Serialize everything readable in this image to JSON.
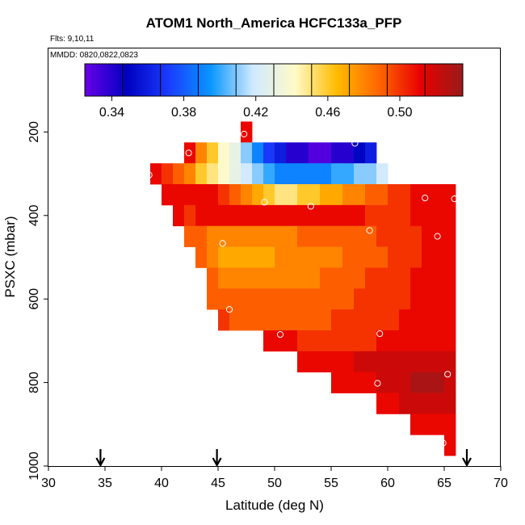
{
  "chart_data": {
    "type": "heatmap",
    "title": "ATOM1 North_America HCFC133a_PFP",
    "flights_label": "Flts: 9,10,11",
    "dates_label": "MMDD: 0820,0822,0823",
    "xlabel": "Latitude (deg N)",
    "ylabel": "PSXC (mbar)",
    "xlim": [
      30,
      70
    ],
    "ylim": [
      1000,
      0
    ],
    "xticks": [
      30,
      35,
      40,
      45,
      50,
      55,
      60,
      65,
      70
    ],
    "yticks": [
      200,
      400,
      600,
      800,
      1000
    ],
    "colorbar": {
      "range": [
        0.325,
        0.535
      ],
      "ticks": [
        0.34,
        0.38,
        0.42,
        0.46,
        0.5
      ],
      "tick_labels": [
        "0.34",
        "0.38",
        "0.42",
        "0.46",
        "0.50"
      ],
      "bins": 10,
      "colors": [
        "#6a00e8",
        "#0000c0",
        "#1a3cff",
        "#0a96ff",
        "#cfe9ff",
        "#fffbc8",
        "#ffbb00",
        "#ff6600",
        "#e80000",
        "#9a1a1a"
      ]
    },
    "grid": {
      "x_start": 34,
      "y_start": 150,
      "cell_deg": 1,
      "cell_mbar": 50,
      "rows": [
        {
          "p": 200,
          "from": 47,
          "values": [
            0.51
          ]
        },
        {
          "p": 250,
          "from": 42,
          "values": [
            0.51,
            0.48,
            0.46,
            0.44,
            0.43,
            0.41,
            0.39,
            0.37,
            0.36,
            0.34,
            0.34,
            0.33,
            0.33,
            0.34,
            0.34,
            0.35,
            0.36
          ]
        },
        {
          "p": 300,
          "from": 39,
          "values": [
            0.51,
            0.5,
            0.49,
            0.48,
            0.46,
            0.45,
            0.44,
            0.43,
            0.42,
            0.41,
            0.4,
            0.39,
            0.39,
            0.39,
            0.39,
            0.39,
            0.4,
            0.4,
            0.41,
            0.41,
            0.42
          ]
        },
        {
          "p": 350,
          "from": 40,
          "values": [
            0.51,
            0.51,
            0.51,
            0.51,
            0.51,
            0.5,
            0.49,
            0.48,
            0.47,
            0.46,
            0.45,
            0.45,
            0.46,
            0.46,
            0.47,
            0.47,
            0.48,
            0.48,
            0.49,
            0.49,
            0.5,
            0.5,
            0.51,
            0.51,
            0.51,
            0.51
          ]
        },
        {
          "p": 400,
          "from": 41,
          "values": [
            0.51,
            0.5,
            0.51,
            0.51,
            0.51,
            0.51,
            0.51,
            0.51,
            0.51,
            0.51,
            0.51,
            0.51,
            0.51,
            0.51,
            0.51,
            0.51,
            0.51,
            0.5,
            0.5,
            0.5,
            0.5,
            0.51,
            0.51,
            0.51,
            0.51
          ]
        },
        {
          "p": 450,
          "from": 42,
          "values": [
            0.49,
            0.49,
            0.48,
            0.48,
            0.48,
            0.48,
            0.48,
            0.48,
            0.48,
            0.48,
            0.49,
            0.49,
            0.49,
            0.49,
            0.49,
            0.49,
            0.49,
            0.5,
            0.5,
            0.5,
            0.5,
            0.51,
            0.51,
            0.51
          ]
        },
        {
          "p": 500,
          "from": 43,
          "values": [
            0.49,
            0.48,
            0.47,
            0.47,
            0.47,
            0.47,
            0.47,
            0.48,
            0.48,
            0.48,
            0.48,
            0.48,
            0.48,
            0.49,
            0.49,
            0.49,
            0.49,
            0.5,
            0.5,
            0.5,
            0.51,
            0.51,
            0.51
          ]
        },
        {
          "p": 550,
          "from": 44,
          "values": [
            0.49,
            0.48,
            0.48,
            0.48,
            0.48,
            0.48,
            0.48,
            0.48,
            0.48,
            0.48,
            0.49,
            0.49,
            0.49,
            0.49,
            0.5,
            0.5,
            0.5,
            0.5,
            0.51,
            0.51,
            0.51,
            0.51
          ]
        },
        {
          "p": 600,
          "from": 44,
          "values": [
            0.49,
            0.49,
            0.49,
            0.49,
            0.49,
            0.49,
            0.49,
            0.49,
            0.49,
            0.49,
            0.49,
            0.49,
            0.49,
            0.5,
            0.5,
            0.5,
            0.5,
            0.5,
            0.51,
            0.51,
            0.51,
            0.51
          ]
        },
        {
          "p": 650,
          "from": 45,
          "values": [
            0.5,
            0.49,
            0.49,
            0.49,
            0.49,
            0.49,
            0.49,
            0.49,
            0.49,
            0.49,
            0.5,
            0.5,
            0.5,
            0.5,
            0.5,
            0.5,
            0.51,
            0.51,
            0.51,
            0.51,
            0.51
          ]
        },
        {
          "p": 700,
          "from": 49,
          "values": [
            0.51,
            0.51,
            0.51,
            0.5,
            0.5,
            0.5,
            0.5,
            0.5,
            0.5,
            0.5,
            0.51,
            0.51,
            0.51,
            0.51,
            0.51,
            0.51,
            0.51
          ]
        },
        {
          "p": 750,
          "from": 52,
          "values": [
            0.51,
            0.51,
            0.51,
            0.51,
            0.51,
            0.52,
            0.52,
            0.52,
            0.52,
            0.52,
            0.52,
            0.52,
            0.52,
            0.52
          ]
        },
        {
          "p": 800,
          "from": 55,
          "values": [
            0.51,
            0.51,
            0.51,
            0.51,
            0.52,
            0.52,
            0.52,
            0.53,
            0.53,
            0.53,
            0.52
          ]
        },
        {
          "p": 850,
          "from": 59,
          "values": [
            0.51,
            0.51,
            0.52,
            0.52,
            0.52,
            0.52,
            0.52
          ]
        },
        {
          "p": 900,
          "from": 62,
          "values": [
            0.51,
            0.51,
            0.51,
            0.51
          ]
        },
        {
          "p": 950,
          "from": 65,
          "values": [
            0.51
          ]
        }
      ]
    },
    "sample_points": [
      {
        "lat": 47.3,
        "p": 205
      },
      {
        "lat": 51.6,
        "p": 213
      },
      {
        "lat": 57.1,
        "p": 227
      },
      {
        "lat": 42.4,
        "p": 250
      },
      {
        "lat": 38.9,
        "p": 303
      },
      {
        "lat": 49.1,
        "p": 368
      },
      {
        "lat": 53.2,
        "p": 378
      },
      {
        "lat": 63.3,
        "p": 358
      },
      {
        "lat": 65.9,
        "p": 360
      },
      {
        "lat": 58.4,
        "p": 436
      },
      {
        "lat": 64.4,
        "p": 450
      },
      {
        "lat": 45.4,
        "p": 467
      },
      {
        "lat": 46.0,
        "p": 625
      },
      {
        "lat": 50.5,
        "p": 685
      },
      {
        "lat": 59.3,
        "p": 683
      },
      {
        "lat": 65.3,
        "p": 780
      },
      {
        "lat": 59.1,
        "p": 802
      },
      {
        "lat": 64.9,
        "p": 945
      }
    ],
    "flight_latitudes": [
      34.6,
      44.9,
      67.0
    ]
  }
}
